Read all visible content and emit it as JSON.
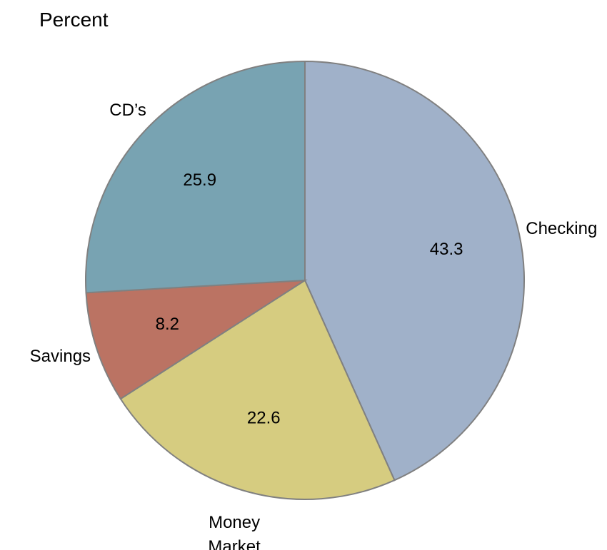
{
  "chart_data": {
    "type": "pie",
    "title": "Percent",
    "categories": [
      "Checking",
      "Money Market",
      "Savings",
      "CD’s"
    ],
    "values": [
      43.3,
      22.6,
      8.2,
      25.9
    ],
    "colors": [
      "#a0b1c9",
      "#d6cc80",
      "#bb7363",
      "#78a3b2"
    ]
  }
}
